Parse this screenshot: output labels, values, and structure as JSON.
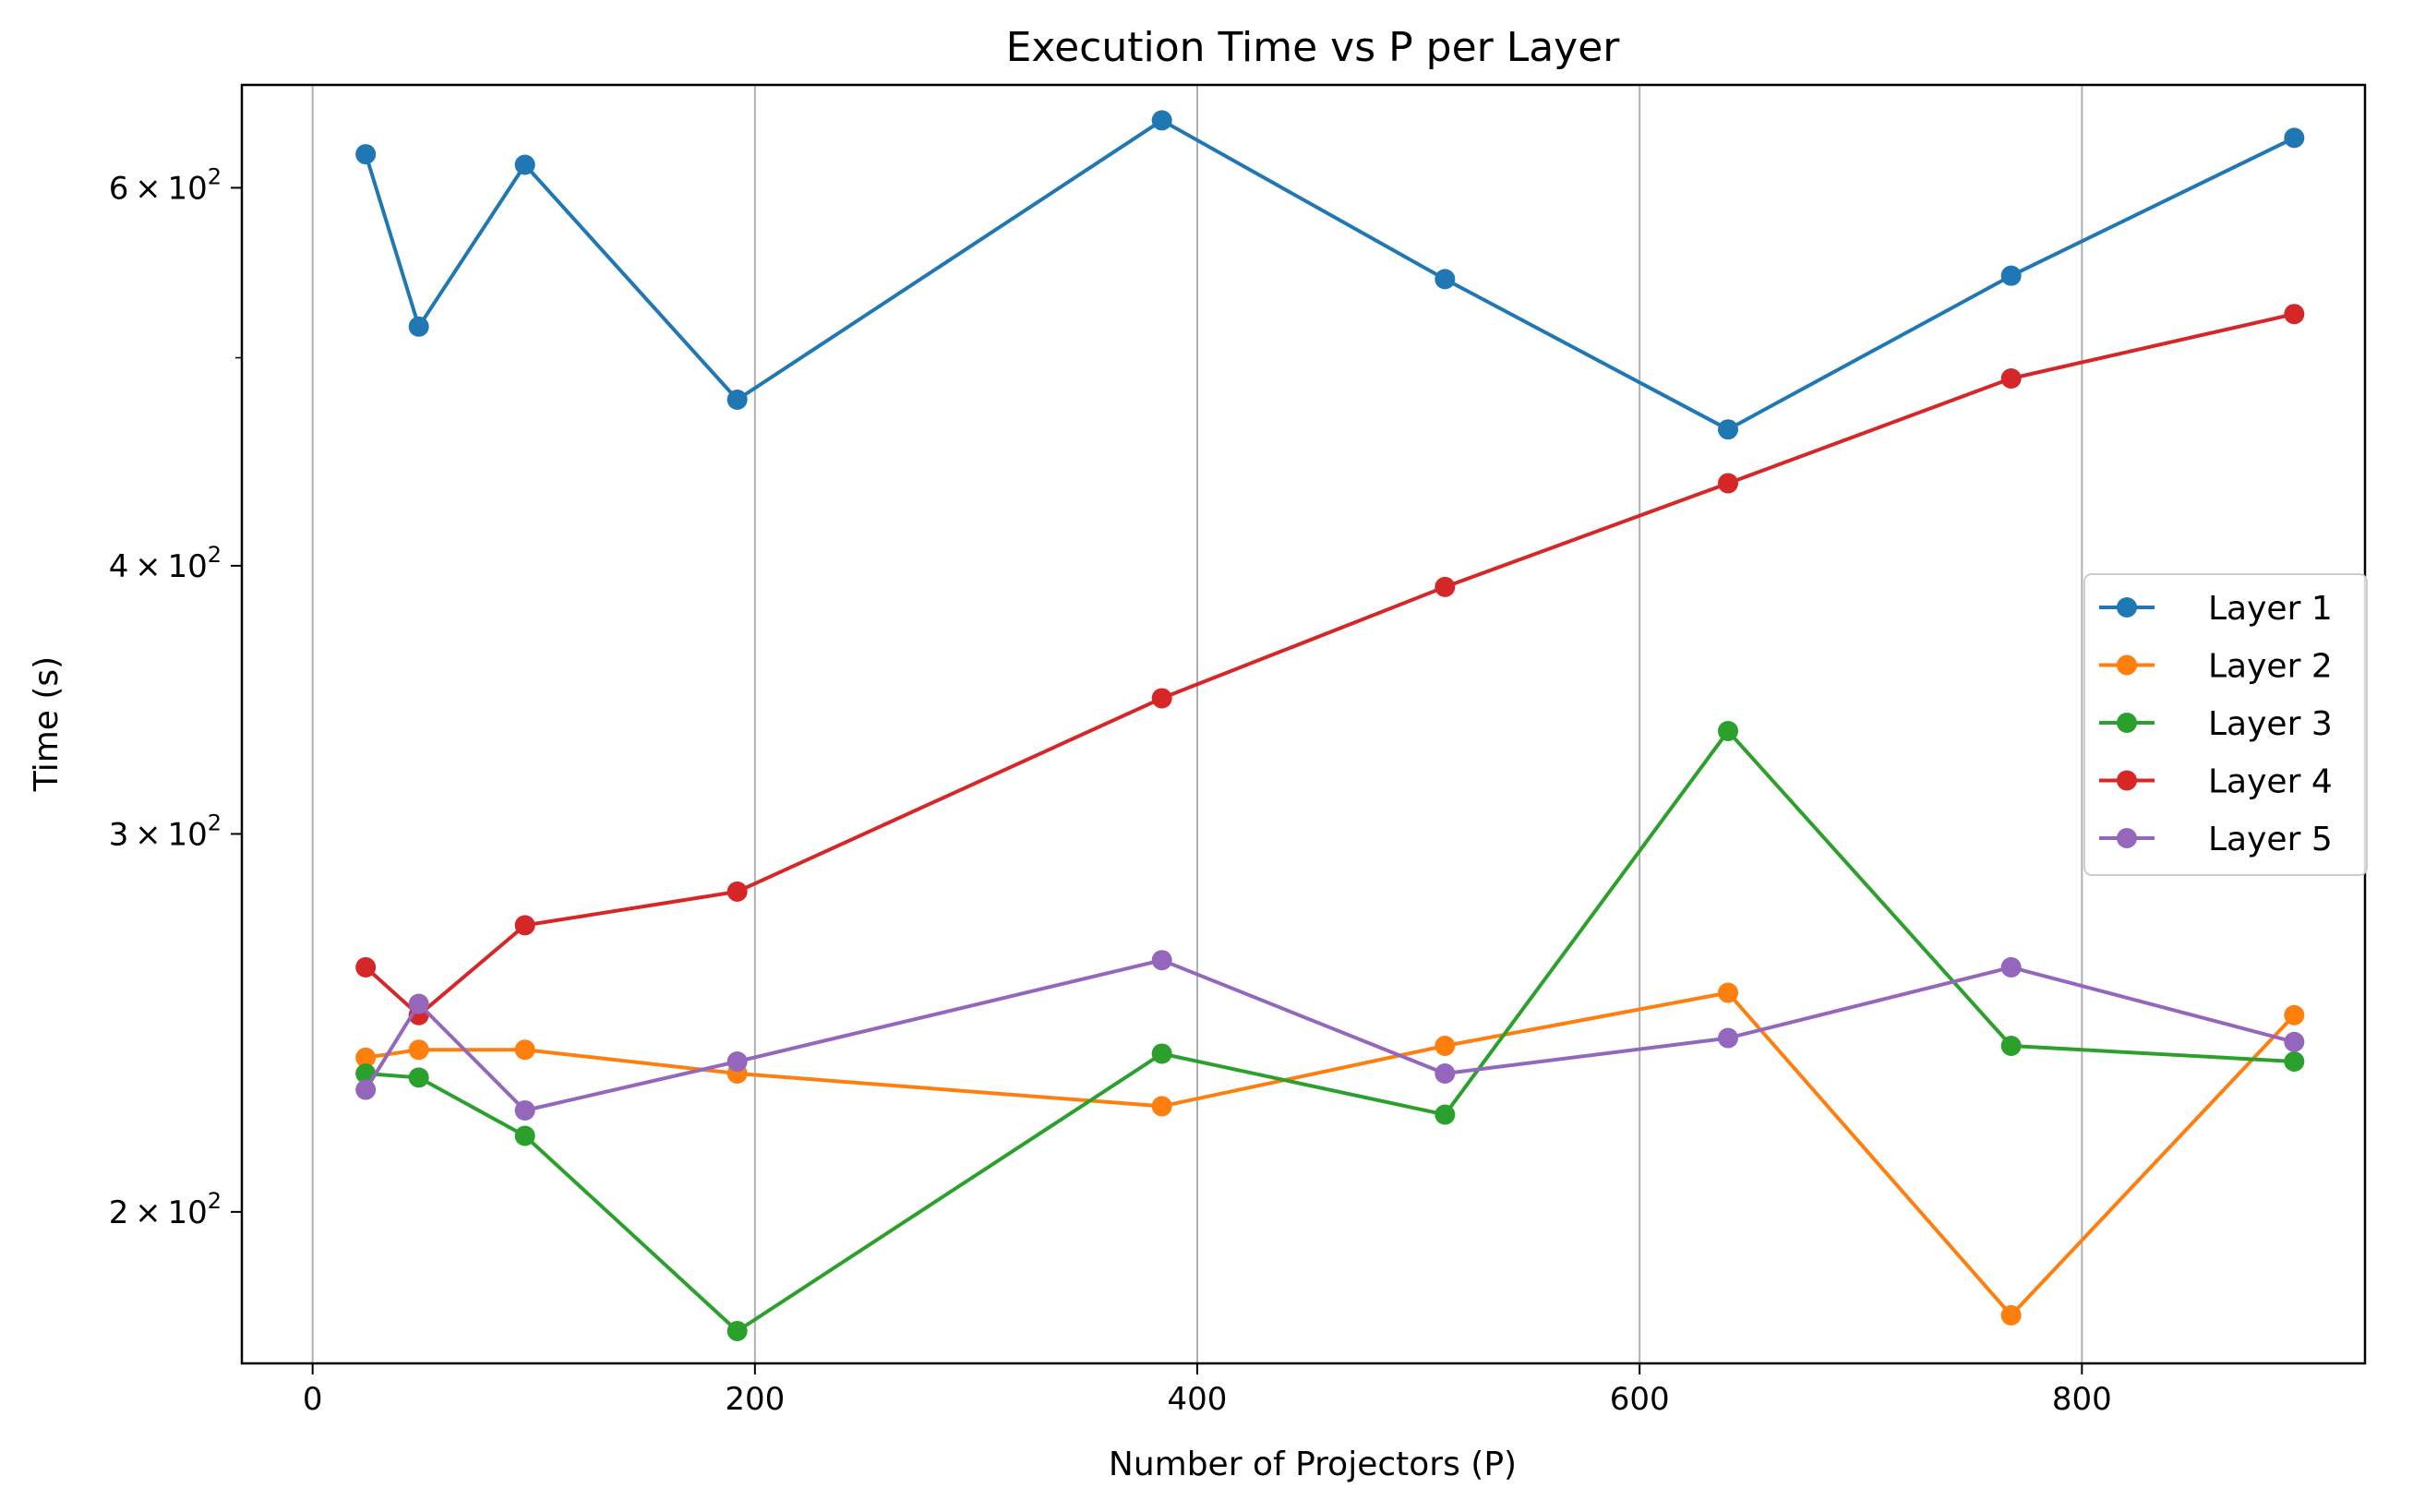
{
  "chart_data": {
    "type": "line",
    "title": "Execution Time vs P per Layer",
    "xlabel": "Number of Projectors (P)",
    "ylabel": "Time (s)",
    "xlim": [
      -32,
      928
    ],
    "ylim": [
      170,
      670
    ],
    "yscale": "log",
    "grid": "vertical lines at x ticks",
    "legend_position": "center-right",
    "xticks": [
      {
        "value": 0,
        "label": "0"
      },
      {
        "value": 200,
        "label": "200"
      },
      {
        "value": 400,
        "label": "400"
      },
      {
        "value": 600,
        "label": "600"
      },
      {
        "value": 800,
        "label": "800"
      }
    ],
    "yticks": [
      {
        "value": 200,
        "base": "2",
        "exp": "2"
      },
      {
        "value": 300,
        "base": "3",
        "exp": "2"
      },
      {
        "value": 400,
        "base": "4",
        "exp": "2"
      },
      {
        "value": 600,
        "base": "6",
        "exp": "2"
      }
    ],
    "yminor": [
      500
    ],
    "x": [
      24,
      48,
      96,
      192,
      384,
      512,
      640,
      768,
      896
    ],
    "series": [
      {
        "name": "Layer 1",
        "color": "#1f77b4",
        "values": [
          622,
          517,
          615,
          478,
          645,
          544,
          463,
          546,
          633
        ]
      },
      {
        "name": "Layer 2",
        "color": "#ff7f0e",
        "values": [
          236,
          238,
          238,
          232,
          224,
          239,
          253,
          179,
          247
        ]
      },
      {
        "name": "Layer 3",
        "color": "#2ca02c",
        "values": [
          232,
          231,
          217,
          176,
          237,
          222,
          335,
          239,
          235
        ]
      },
      {
        "name": "Layer 4",
        "color": "#d62728",
        "values": [
          260,
          247,
          272,
          282,
          347,
          391,
          437,
          489,
          524
        ]
      },
      {
        "name": "Layer 5",
        "color": "#9467bd",
        "values": [
          228,
          250,
          223,
          235,
          262,
          232,
          241,
          260,
          240
        ]
      }
    ]
  }
}
